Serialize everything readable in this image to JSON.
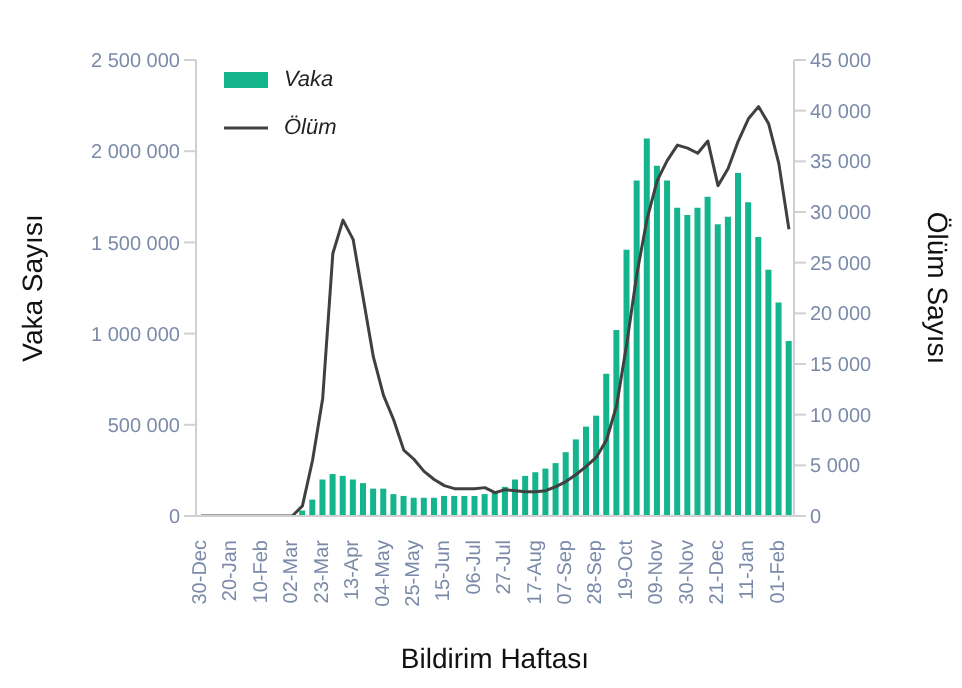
{
  "chart_data": {
    "type": "bar",
    "xlabel": "Bildirim Haftası",
    "ylabel": "Vaka Sayısı",
    "y2label": "Ölüm Sayısı",
    "categories": [
      "30-Dec",
      null,
      null,
      "20-Jan",
      null,
      null,
      "10-Feb",
      null,
      null,
      "02-Mar",
      null,
      null,
      "23-Mar",
      null,
      null,
      "13-Apr",
      null,
      null,
      "04-May",
      null,
      null,
      "25-May",
      null,
      null,
      "15-Jun",
      null,
      null,
      "06-Jul",
      null,
      null,
      "27-Jul",
      null,
      null,
      "17-Aug",
      null,
      null,
      "07-Sep",
      null,
      null,
      "28-Sep",
      null,
      null,
      "19-Oct",
      null,
      null,
      "09-Nov",
      null,
      null,
      "30-Nov",
      null,
      null,
      "21-Dec",
      null,
      null,
      "11-Jan",
      null,
      null,
      "01-Feb",
      null
    ],
    "series": [
      {
        "name": "Vaka",
        "color": "#14b48c",
        "values": [
          null,
          null,
          null,
          null,
          null,
          null,
          null,
          null,
          null,
          null,
          30000,
          90000,
          200000,
          230000,
          220000,
          200000,
          180000,
          150000,
          150000,
          120000,
          110000,
          100000,
          100000,
          100000,
          110000,
          110000,
          110000,
          110000,
          120000,
          130000,
          160000,
          200000,
          220000,
          240000,
          260000,
          290000,
          350000,
          420000,
          490000,
          550000,
          780000,
          1020000,
          1460000,
          1840000,
          2070000,
          1920000,
          1840000,
          1690000,
          1650000,
          1690000,
          1750000,
          1600000,
          1640000,
          1880000,
          1720000,
          1530000,
          1350000,
          1170000,
          960000
        ]
      },
      {
        "name": "Ölüm",
        "type": "line",
        "axis": "y2",
        "color": "#404040",
        "values": [
          0,
          0,
          0,
          0,
          0,
          0,
          0,
          0,
          0,
          0,
          1000,
          5500,
          11600,
          25900,
          29200,
          27300,
          21500,
          15700,
          11900,
          9500,
          6500,
          5600,
          4400,
          3600,
          3000,
          2700,
          2700,
          2700,
          2800,
          2300,
          2600,
          2500,
          2400,
          2400,
          2500,
          2900,
          3400,
          4100,
          4900,
          5800,
          7500,
          10900,
          17000,
          23900,
          29300,
          33100,
          35100,
          36600,
          36300,
          35800,
          37000,
          32600,
          34300,
          37000,
          39200,
          40400,
          38700,
          34800,
          28300
        ]
      }
    ],
    "ylim": [
      0,
      2500000
    ],
    "yticks": [
      {
        "value": 0,
        "label": "0"
      },
      {
        "value": 500000,
        "label": "500 000"
      },
      {
        "value": 1000000,
        "label": "1 000 000"
      },
      {
        "value": 1500000,
        "label": "1 500 000"
      },
      {
        "value": 2000000,
        "label": "2 000 000"
      },
      {
        "value": 2500000,
        "label": "2 500 000"
      }
    ],
    "y2lim": [
      0,
      45000
    ],
    "y2ticks": [
      {
        "value": 0,
        "label": "0"
      },
      {
        "value": 5000,
        "label": "5 000"
      },
      {
        "value": 10000,
        "label": "10 000"
      },
      {
        "value": 15000,
        "label": "15 000"
      },
      {
        "value": 20000,
        "label": "20 000"
      },
      {
        "value": 25000,
        "label": "25 000"
      },
      {
        "value": 30000,
        "label": "30 000"
      },
      {
        "value": 35000,
        "label": "35 000"
      },
      {
        "value": 40000,
        "label": "40 000"
      },
      {
        "value": 45000,
        "label": "45 000"
      }
    ],
    "grid": false,
    "legend": "top left",
    "marker": "none",
    "line_style": "solid"
  }
}
